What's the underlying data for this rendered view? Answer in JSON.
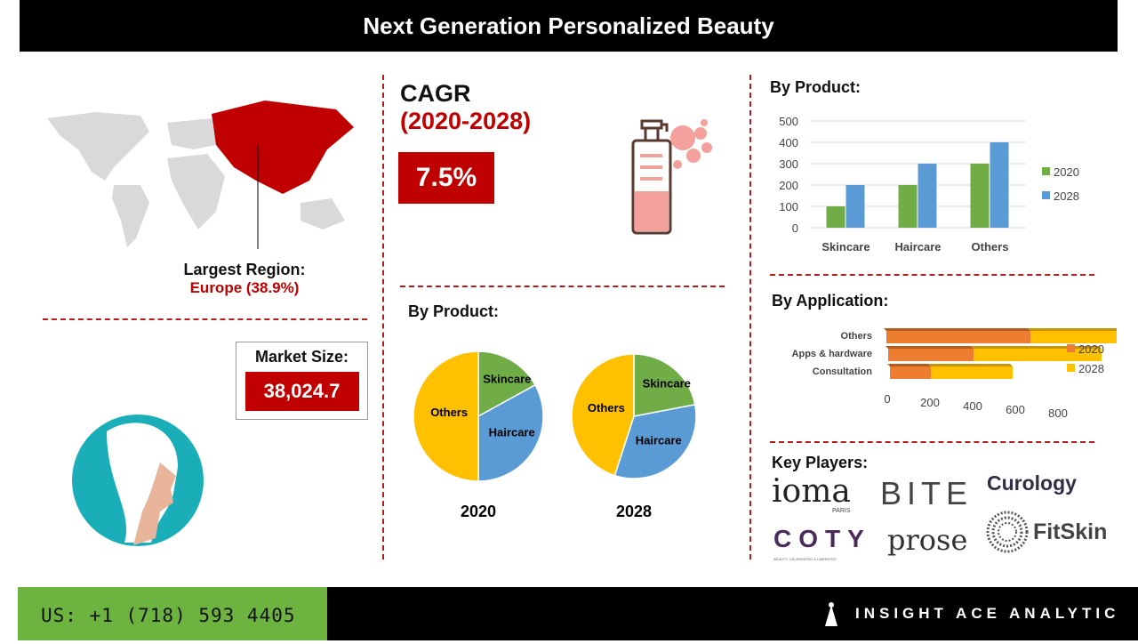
{
  "header": {
    "title": "Next Generation Personalized Beauty"
  },
  "region": {
    "label": "Largest Region:",
    "value": "Europe (38.9%)"
  },
  "market": {
    "label": "Market Size:",
    "value": "38,024.7"
  },
  "cagr": {
    "label": "CAGR",
    "period": "(2020-2028)",
    "value": "7.5%"
  },
  "colors": {
    "accent": "#c00000",
    "green": "#70ad47",
    "blue": "#5b9bd5",
    "orange": "#ed7d31",
    "yellow": "#ffc000"
  },
  "pies_title": "By Product:",
  "bar_title": "By Product:",
  "app_title": "By Application:",
  "players_title": "Key Players:",
  "players": [
    "ioma",
    "PARIS",
    "BITE",
    "Curology",
    "COTY",
    "BEAUTY. CELEBRATED & LIBERATED",
    "prose",
    "FitSkin"
  ],
  "chart_data": [
    {
      "type": "pie",
      "title": "2020",
      "labels": [
        "Skincare",
        "Haircare",
        "Others"
      ],
      "values": [
        17,
        33,
        50
      ]
    },
    {
      "type": "pie",
      "title": "2028",
      "labels": [
        "Skincare",
        "Haircare",
        "Others"
      ],
      "values": [
        22,
        33,
        45
      ]
    },
    {
      "type": "bar",
      "categories": [
        "Skincare",
        "Haircare",
        "Others"
      ],
      "series": [
        {
          "name": "2020",
          "values": [
            100,
            200,
            300
          ]
        },
        {
          "name": "2028",
          "values": [
            200,
            300,
            400
          ]
        }
      ],
      "ylim": [
        0,
        500
      ],
      "yticks": [
        "0",
        "100",
        "200",
        "300",
        "400",
        "500"
      ],
      "legend": "right",
      "grid": true
    },
    {
      "type": "bar",
      "orientation": "horizontal-stacked-3d",
      "categories": [
        "Others",
        "Apps & hardware",
        "Consultation"
      ],
      "series": [
        {
          "name": "2020",
          "values": [
            300,
            200,
            100
          ]
        },
        {
          "name": "2028",
          "values": [
            400,
            300,
            200
          ]
        }
      ],
      "xlim": [
        0,
        800
      ],
      "xticks": [
        "0",
        "200",
        "400",
        "600",
        "800"
      ],
      "legend": "right"
    }
  ],
  "footer": {
    "phone": "US: +1 (718) 593 4405",
    "brand": "INSIGHT ACE ANALYTIC"
  }
}
